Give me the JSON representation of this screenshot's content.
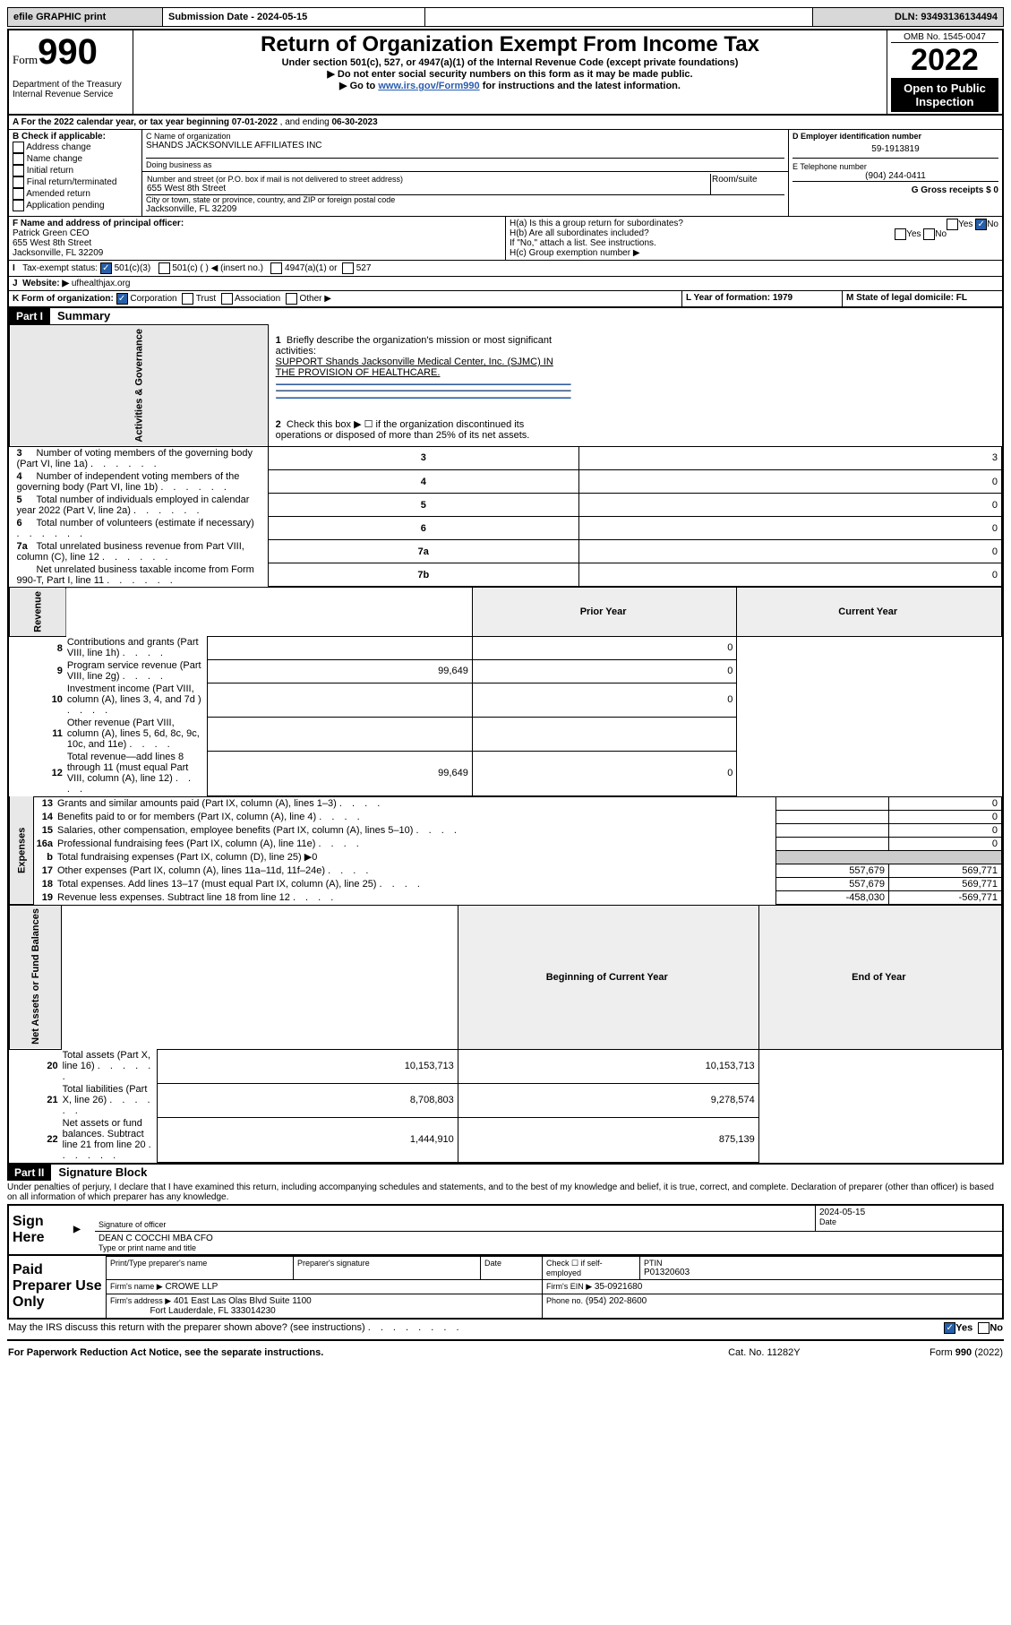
{
  "topbar": {
    "efile": "efile GRAPHIC print",
    "sub_label": "Submission Date - 2024-05-15",
    "dln": "DLN: 93493136134494"
  },
  "header": {
    "form_prefix": "Form",
    "form_no": "990",
    "title": "Return of Organization Exempt From Income Tax",
    "sub1": "Under section 501(c), 527, or 4947(a)(1) of the Internal Revenue Code (except private foundations)",
    "sub2": "▶ Do not enter social security numbers on this form as it may be made public.",
    "sub3": "▶ Go to ",
    "link": "www.irs.gov/Form990",
    "sub3b": " for instructions and the latest information.",
    "dept": "Department of the Treasury",
    "irs": "Internal Revenue Service",
    "omb": "OMB No. 1545-0047",
    "year": "2022",
    "inspect": "Open to Public Inspection"
  },
  "line_a": {
    "prefix": "A For the 2022 calendar year, or tax year beginning ",
    "begin": "07-01-2022",
    "mid": " , and ending ",
    "end": "06-30-2023"
  },
  "box_b": {
    "title": "B Check if applicable:",
    "items": [
      "Address change",
      "Name change",
      "Initial return",
      "Final return/terminated",
      "Amended return",
      "Application pending"
    ]
  },
  "box_c": {
    "label": "C Name of organization",
    "name": "SHANDS JACKSONVILLE AFFILIATES INC",
    "dba_label": "Doing business as",
    "addr_label": "Number and street (or P.O. box if mail is not delivered to street address)",
    "room": "Room/suite",
    "street": "655 West 8th Street",
    "city_label": "City or town, state or province, country, and ZIP or foreign postal code",
    "city": "Jacksonville, FL  32209"
  },
  "box_d": {
    "label": "D Employer identification number",
    "value": "59-1913819"
  },
  "box_e": {
    "label": "E Telephone number",
    "value": "(904) 244-0411"
  },
  "box_g": {
    "label": "G Gross receipts $ 0"
  },
  "box_f": {
    "label": "F Name and address of principal officer:",
    "name": "Patrick Green CEO",
    "street": "655 West 8th Street",
    "city": "Jacksonville, FL  32209"
  },
  "box_h": {
    "a": "H(a)  Is this a group return for subordinates?",
    "b": "H(b)  Are all subordinates included?",
    "b2": "If \"No,\" attach a list. See instructions.",
    "c": "H(c)  Group exemption number ▶",
    "yes": "Yes",
    "no": "No"
  },
  "box_i": {
    "label": "Tax-exempt status:",
    "o1": "501(c)(3)",
    "o2": "501(c) (  ) ◀ (insert no.)",
    "o3": "4947(a)(1) or",
    "o4": "527"
  },
  "box_j": {
    "label": "Website: ▶",
    "value": "ufhealthjax.org"
  },
  "box_k": {
    "label": "K Form of organization:",
    "o1": "Corporation",
    "o2": "Trust",
    "o3": "Association",
    "o4": "Other ▶"
  },
  "box_l": {
    "label": "L Year of formation: 1979"
  },
  "box_m": {
    "label": "M State of legal domicile: FL"
  },
  "part1": {
    "header": "Part I",
    "title": "Summary",
    "l1a": "Briefly describe the organization's mission or most significant activities:",
    "l1b": "SUPPORT Shands Jacksonville Medical Center, Inc. (SJMC) IN THE PROVISION OF HEALTHCARE.",
    "l2": "Check this box ▶ ☐  if the organization discontinued its operations or disposed of more than 25% of its net assets.",
    "rows_gov": [
      {
        "n": "3",
        "t": "Number of voting members of the governing body (Part VI, line 1a)",
        "k": "3",
        "v": "3"
      },
      {
        "n": "4",
        "t": "Number of independent voting members of the governing body (Part VI, line 1b)",
        "k": "4",
        "v": "0"
      },
      {
        "n": "5",
        "t": "Total number of individuals employed in calendar year 2022 (Part V, line 2a)",
        "k": "5",
        "v": "0"
      },
      {
        "n": "6",
        "t": "Total number of volunteers (estimate if necessary)",
        "k": "6",
        "v": "0"
      },
      {
        "n": "7a",
        "t": "Total unrelated business revenue from Part VIII, column (C), line 12",
        "k": "7a",
        "v": "0"
      },
      {
        "n": "",
        "t": "Net unrelated business taxable income from Form 990-T, Part I, line 11",
        "k": "7b",
        "v": "0"
      }
    ],
    "col_prior": "Prior Year",
    "col_current": "Current Year",
    "rows_rev": [
      {
        "n": "8",
        "t": "Contributions and grants (Part VIII, line 1h)",
        "p": "",
        "c": "0"
      },
      {
        "n": "9",
        "t": "Program service revenue (Part VIII, line 2g)",
        "p": "99,649",
        "c": "0"
      },
      {
        "n": "10",
        "t": "Investment income (Part VIII, column (A), lines 3, 4, and 7d )",
        "p": "",
        "c": "0"
      },
      {
        "n": "11",
        "t": "Other revenue (Part VIII, column (A), lines 5, 6d, 8c, 9c, 10c, and 11e)",
        "p": "",
        "c": ""
      },
      {
        "n": "12",
        "t": "Total revenue—add lines 8 through 11 (must equal Part VIII, column (A), line 12)",
        "p": "99,649",
        "c": "0"
      }
    ],
    "rows_exp": [
      {
        "n": "13",
        "t": "Grants and similar amounts paid (Part IX, column (A), lines 1–3)",
        "p": "",
        "c": "0"
      },
      {
        "n": "14",
        "t": "Benefits paid to or for members (Part IX, column (A), line 4)",
        "p": "",
        "c": "0"
      },
      {
        "n": "15",
        "t": "Salaries, other compensation, employee benefits (Part IX, column (A), lines 5–10)",
        "p": "",
        "c": "0"
      },
      {
        "n": "16a",
        "t": "Professional fundraising fees (Part IX, column (A), line 11e)",
        "p": "",
        "c": "0"
      },
      {
        "n": "b",
        "t": "Total fundraising expenses (Part IX, column (D), line 25) ▶0",
        "p": null,
        "c": null
      },
      {
        "n": "17",
        "t": "Other expenses (Part IX, column (A), lines 11a–11d, 11f–24e)",
        "p": "557,679",
        "c": "569,771"
      },
      {
        "n": "18",
        "t": "Total expenses. Add lines 13–17 (must equal Part IX, column (A), line 25)",
        "p": "557,679",
        "c": "569,771"
      },
      {
        "n": "19",
        "t": "Revenue less expenses. Subtract line 18 from line 12",
        "p": "-458,030",
        "c": "-569,771"
      }
    ],
    "col_begin": "Beginning of Current Year",
    "col_end": "End of Year",
    "rows_net": [
      {
        "n": "20",
        "t": "Total assets (Part X, line 16)",
        "p": "10,153,713",
        "c": "10,153,713"
      },
      {
        "n": "21",
        "t": "Total liabilities (Part X, line 26)",
        "p": "8,708,803",
        "c": "9,278,574"
      },
      {
        "n": "22",
        "t": "Net assets or fund balances. Subtract line 21 from line 20",
        "p": "1,444,910",
        "c": "875,139"
      }
    ]
  },
  "part2": {
    "header": "Part II",
    "title": "Signature Block",
    "decl": "Under penalties of perjury, I declare that I have examined this return, including accompanying schedules and statements, and to the best of my knowledge and belief, it is true, correct, and complete. Declaration of preparer (other than officer) is based on all information of which preparer has any knowledge.",
    "sign_here": "Sign Here",
    "sig_officer": "Signature of officer",
    "date": "Date",
    "date_val": "2024-05-15",
    "officer_name": "DEAN C COCCHI MBA  CFO",
    "type_name": "Type or print name and title",
    "paid": "Paid Preparer Use Only",
    "pt_name": "Print/Type preparer's name",
    "pt_sig": "Preparer's signature",
    "check_self": "Check ☐ if self-employed",
    "ptin_l": "PTIN",
    "ptin": "P01320603",
    "firm_name_l": "Firm's name   ▶",
    "firm_name": "CROWE LLP",
    "firm_ein_l": "Firm's EIN ▶",
    "firm_ein": "35-0921680",
    "firm_addr_l": "Firm's address ▶",
    "firm_addr": "401 East Las Olas Blvd Suite 1100",
    "firm_city": "Fort Lauderdale, FL  333014230",
    "phone_l": "Phone no.",
    "phone": "(954) 202-8600",
    "discuss": "May the IRS discuss this return with the preparer shown above? (see instructions)",
    "paperwork": "For Paperwork Reduction Act Notice, see the separate instructions.",
    "catno": "Cat. No. 11282Y",
    "form_foot": "Form 990 (2022)"
  },
  "labels": {
    "gov": "Activities & Governance",
    "rev": "Revenue",
    "exp": "Expenses",
    "net": "Net Assets or Fund Balances"
  }
}
